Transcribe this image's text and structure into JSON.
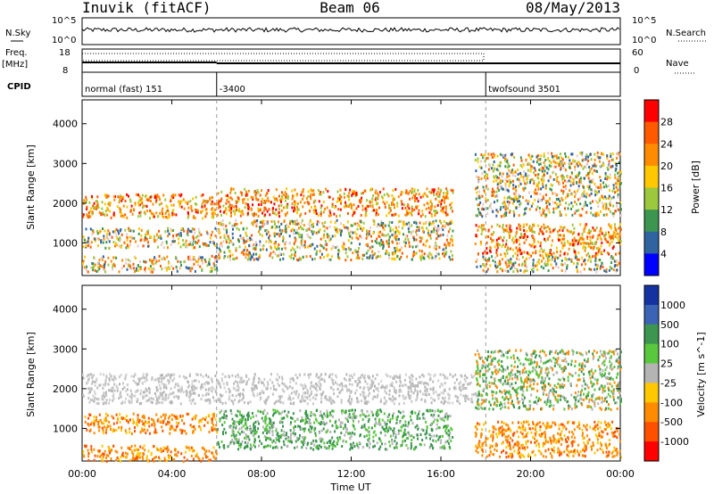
{
  "header": {
    "station": "Inuvik (fitACF)",
    "beam": "Beam 06",
    "date": "08/May/2013"
  },
  "params": {
    "nsky_label": "N.Sky",
    "nsearch_label": "N.Search",
    "noise_ticks_left": [
      "10^5",
      "10^0"
    ],
    "noise_ticks_right": [
      "10^5",
      "10^0"
    ],
    "freq_label_top": "Freq.",
    "freq_label_unit": "[MHz]",
    "freq_ticks": [
      "18",
      "8"
    ],
    "nave_label": "Nave",
    "nave_ticks": [
      "60",
      "0"
    ],
    "cpid_label": "CPID",
    "cpid_segments": [
      {
        "label": "normal (fast) 151",
        "start_hour": 0,
        "end_hour": 6
      },
      {
        "label": "-3400",
        "start_hour": 6,
        "end_hour": 18
      },
      {
        "label": "twofsound 3501",
        "start_hour": 18,
        "end_hour": 24
      }
    ]
  },
  "chart_data": [
    {
      "type": "heatmap",
      "title": "",
      "xlabel": "Time UT",
      "ylabel": "Slant Range [km]",
      "x_range_hours": [
        0,
        24
      ],
      "xticks": [
        "00:00",
        "04:00",
        "08:00",
        "12:00",
        "16:00",
        "20:00",
        "00:00"
      ],
      "ylim": [
        180,
        4600
      ],
      "yticks": [
        1000,
        2000,
        3000,
        4000
      ],
      "colorbar": {
        "label": "Power [dB]",
        "ticks": [
          "28",
          "24",
          "20",
          "16",
          "12",
          "8",
          "4"
        ],
        "colors": [
          "#ff0000",
          "#ff5a00",
          "#ff8c00",
          "#ffc800",
          "#9bc83c",
          "#3c9650",
          "#2f64a0",
          "#0000ff"
        ]
      },
      "series": [
        {
          "type": "band",
          "start_hour": 0.0,
          "end_hour": 6.0,
          "range_km": [
            1650,
            2250
          ],
          "level": "high"
        },
        {
          "type": "band",
          "start_hour": 0.0,
          "end_hour": 6.0,
          "range_km": [
            900,
            1400
          ],
          "level": "mixed"
        },
        {
          "type": "band",
          "start_hour": 0.0,
          "end_hour": 6.0,
          "range_km": [
            300,
            700
          ],
          "level": "mixed"
        },
        {
          "type": "band",
          "start_hour": 6.0,
          "end_hour": 16.5,
          "range_km": [
            1700,
            2400
          ],
          "level": "high"
        },
        {
          "type": "band",
          "start_hour": 6.0,
          "end_hour": 16.5,
          "range_km": [
            600,
            1600
          ],
          "level": "mixed"
        },
        {
          "type": "band",
          "start_hour": 17.5,
          "end_hour": 24.0,
          "range_km": [
            1700,
            3300
          ],
          "level": "mixed"
        },
        {
          "type": "band",
          "start_hour": 17.5,
          "end_hour": 24.0,
          "range_km": [
            700,
            1500
          ],
          "level": "high"
        },
        {
          "type": "band",
          "start_hour": 17.5,
          "end_hour": 24.0,
          "range_km": [
            300,
            700
          ],
          "level": "mixed"
        }
      ]
    },
    {
      "type": "heatmap",
      "title": "",
      "xlabel": "Time UT",
      "ylabel": "Slant Range [km]",
      "x_range_hours": [
        0,
        24
      ],
      "xticks": [
        "00:00",
        "04:00",
        "08:00",
        "12:00",
        "16:00",
        "20:00",
        "00:00"
      ],
      "ylim": [
        180,
        4600
      ],
      "yticks": [
        1000,
        2000,
        3000,
        4000
      ],
      "colorbar": {
        "label": "Velocity [m s^-1]",
        "ticks": [
          "1000",
          "500",
          "100",
          "25",
          "-25",
          "-100",
          "-500",
          "-1000"
        ],
        "colors": [
          "#1432a0",
          "#3c64b4",
          "#3c9650",
          "#5ac83c",
          "#b4b4b4",
          "#ffc800",
          "#ff8c00",
          "#ff5000",
          "#ff0000"
        ]
      },
      "series": [
        {
          "type": "band",
          "start_hour": 0.0,
          "end_hour": 17.5,
          "range_km": [
            1650,
            2400
          ],
          "level": "grey"
        },
        {
          "type": "band",
          "start_hour": 0.0,
          "end_hour": 6.0,
          "range_km": [
            900,
            1400
          ],
          "level": "orange"
        },
        {
          "type": "band",
          "start_hour": 0.0,
          "end_hour": 6.0,
          "range_km": [
            200,
            600
          ],
          "level": "orange"
        },
        {
          "type": "band",
          "start_hour": 6.0,
          "end_hour": 16.5,
          "range_km": [
            500,
            1500
          ],
          "level": "green"
        },
        {
          "type": "band",
          "start_hour": 17.5,
          "end_hour": 24.0,
          "range_km": [
            1500,
            3000
          ],
          "level": "mixed"
        },
        {
          "type": "band",
          "start_hour": 17.5,
          "end_hour": 24.0,
          "range_km": [
            300,
            1200
          ],
          "level": "orange"
        }
      ]
    }
  ]
}
